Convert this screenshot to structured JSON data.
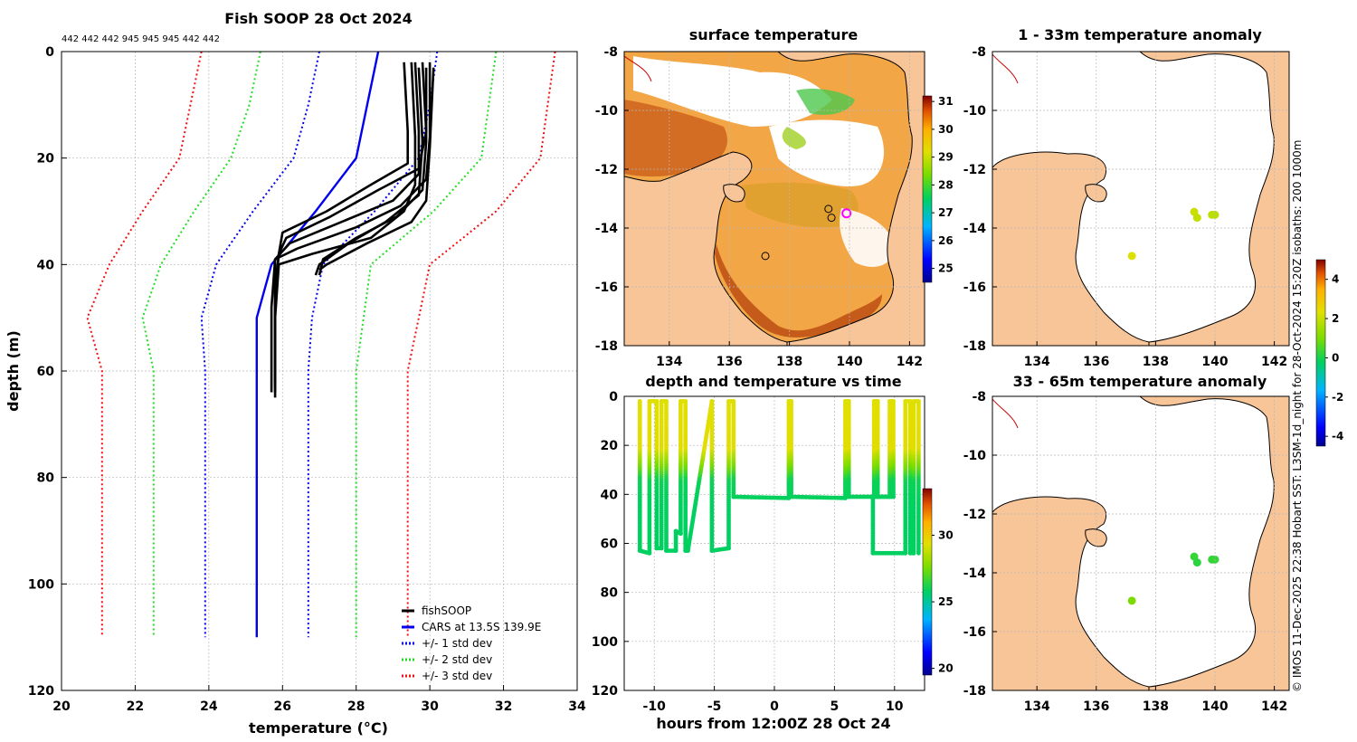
{
  "chart_data": [
    {
      "type": "line",
      "id": "profile",
      "title": "Fish SOOP 28 Oct 2024",
      "subtitle": "442 442 442 945 945 945 442 442",
      "xlabel": "temperature (°C)",
      "ylabel": "depth (m)",
      "xlim": [
        20,
        34
      ],
      "ylim": [
        120,
        0
      ],
      "xticks": [
        20,
        22,
        24,
        26,
        28,
        30,
        32,
        34
      ],
      "yticks": [
        0,
        20,
        40,
        60,
        80,
        100,
        120
      ],
      "legend_position": "bottom-right",
      "legend": [
        "fishSOOP",
        "CARS at 13.5S 139.9E",
        "+/- 1 std dev",
        "+/- 2 std dev",
        "+/- 3 std dev"
      ],
      "depths": [
        0,
        10,
        20,
        30,
        40,
        50,
        60,
        110
      ],
      "series": [
        {
          "name": "CARS at 13.5S 139.9E",
          "color": "#0000ee",
          "style": "solid",
          "temps": [
            28.6,
            28.3,
            28.0,
            26.9,
            25.7,
            25.3,
            25.3,
            25.3
          ]
        },
        {
          "name": "-1 std dev",
          "color": "#0000ee",
          "style": "dotted",
          "temps": [
            27.0,
            26.7,
            26.3,
            25.2,
            24.2,
            23.8,
            23.9,
            23.9
          ]
        },
        {
          "name": "+1 std dev",
          "color": "#0000ee",
          "style": "dotted",
          "temps": [
            30.2,
            30.0,
            29.7,
            28.5,
            27.1,
            26.8,
            26.7,
            26.7
          ]
        },
        {
          "name": "-2 std dev",
          "color": "#22dd22",
          "style": "dotted",
          "temps": [
            25.4,
            25.1,
            24.6,
            23.6,
            22.7,
            22.2,
            22.5,
            22.5
          ]
        },
        {
          "name": "+2 std dev",
          "color": "#22dd22",
          "style": "dotted",
          "temps": [
            31.8,
            31.6,
            31.4,
            30.1,
            28.4,
            28.2,
            28.0,
            28.0
          ]
        },
        {
          "name": "-3 std dev",
          "color": "#ee1111",
          "style": "dotted",
          "temps": [
            23.8,
            23.5,
            23.2,
            22.2,
            21.3,
            20.7,
            21.1,
            21.1
          ]
        },
        {
          "name": "+3 std dev",
          "color": "#ee1111",
          "style": "dotted",
          "temps": [
            33.4,
            33.2,
            33.0,
            31.8,
            30.0,
            29.7,
            29.4,
            29.4
          ]
        }
      ],
      "fishSOOP_profiles": [
        {
          "depths": [
            2,
            15,
            21,
            25,
            30,
            34,
            38,
            45,
            55,
            60,
            64
          ],
          "temps": [
            29.3,
            29.4,
            29.4,
            28.4,
            27.2,
            26.0,
            25.9,
            25.8,
            25.8,
            25.8,
            25.8
          ]
        },
        {
          "depths": [
            2,
            15,
            22,
            26,
            31,
            35,
            38,
            45,
            55,
            63
          ],
          "temps": [
            29.8,
            29.9,
            29.7,
            28.6,
            27.3,
            26.1,
            25.9,
            25.8,
            25.8,
            25.8
          ]
        },
        {
          "depths": [
            2,
            15,
            23,
            28,
            32,
            36,
            39,
            48,
            58,
            64
          ],
          "temps": [
            29.6,
            29.7,
            29.7,
            29.0,
            27.6,
            26.2,
            25.8,
            25.7,
            25.7,
            25.7
          ]
        },
        {
          "depths": [
            2,
            16,
            24,
            29,
            33,
            37,
            39,
            50,
            60,
            65
          ],
          "temps": [
            30.0,
            30.0,
            29.9,
            29.2,
            28.0,
            26.4,
            25.8,
            25.8,
            25.8,
            25.8
          ]
        },
        {
          "depths": [
            2,
            16,
            25,
            30,
            35,
            38,
            40,
            50,
            62
          ],
          "temps": [
            29.5,
            29.6,
            29.6,
            29.3,
            28.4,
            26.8,
            25.9,
            25.8,
            25.8
          ]
        },
        {
          "depths": [
            3,
            17,
            26,
            31,
            35,
            39,
            42
          ],
          "temps": [
            29.9,
            29.9,
            29.8,
            29.1,
            28.0,
            27.1,
            27.0
          ]
        },
        {
          "depths": [
            3,
            17,
            27,
            32,
            36,
            40,
            42
          ],
          "temps": [
            29.7,
            29.8,
            29.7,
            28.8,
            27.8,
            27.0,
            26.9
          ]
        },
        {
          "depths": [
            3,
            18,
            28,
            32,
            36,
            40,
            41
          ],
          "temps": [
            30.1,
            30.0,
            29.9,
            29.5,
            28.3,
            27.2,
            27.0
          ]
        }
      ]
    },
    {
      "type": "heatmap",
      "id": "sst",
      "title": "surface temperature",
      "xlim": [
        132.5,
        142.5
      ],
      "ylim": [
        -18,
        -8
      ],
      "xticks": [
        134,
        136,
        138,
        140,
        142
      ],
      "yticks": [
        -8,
        -10,
        -12,
        -14,
        -16,
        -18
      ],
      "colorbar_ticks": [
        25,
        26,
        27,
        28,
        29,
        30,
        31
      ],
      "colorbar_range": [
        24.5,
        31.2
      ],
      "circle_markers": [
        [
          139.3,
          -13.35
        ],
        [
          139.4,
          -13.65
        ],
        [
          137.2,
          -14.95
        ]
      ],
      "highlight_marker": [
        139.9,
        -13.5
      ]
    },
    {
      "type": "scatter",
      "id": "depthtime",
      "title": "depth and temperature vs time",
      "xlabel": "hours from 12:00Z 28 Oct 24",
      "xlim": [
        -12.5,
        12.5
      ],
      "ylim": [
        120,
        0
      ],
      "xticks": [
        -10,
        -5,
        0,
        5,
        10
      ],
      "yticks": [
        0,
        20,
        40,
        60,
        80,
        100,
        120
      ],
      "colorbar_ticks": [
        20,
        25,
        30
      ],
      "colorbar_range": [
        19.5,
        33.5
      ],
      "track": [
        [
          -11.2,
          2
        ],
        [
          -11.2,
          63
        ],
        [
          -10.4,
          64
        ],
        [
          -10.4,
          2
        ],
        [
          -9.8,
          2
        ],
        [
          -9.8,
          62
        ],
        [
          -9.4,
          62
        ],
        [
          -9.4,
          2
        ],
        [
          -9.0,
          2
        ],
        [
          -9.0,
          63
        ],
        [
          -8.2,
          63
        ],
        [
          -8.2,
          55
        ],
        [
          -7.8,
          56
        ],
        [
          -7.8,
          2
        ],
        [
          -7.4,
          2
        ],
        [
          -7.4,
          63
        ],
        [
          -7.2,
          63
        ],
        [
          -5.2,
          2
        ],
        [
          -5.2,
          63
        ],
        [
          -3.8,
          62
        ],
        [
          -3.8,
          2
        ],
        [
          -3.4,
          2
        ],
        [
          -3.4,
          41
        ],
        [
          1.2,
          41.5
        ],
        [
          1.2,
          2
        ],
        [
          1.4,
          2
        ],
        [
          1.4,
          41
        ],
        [
          5.9,
          41.5
        ],
        [
          5.9,
          2
        ],
        [
          6.2,
          2
        ],
        [
          6.2,
          41
        ],
        [
          8.3,
          41
        ],
        [
          8.3,
          2
        ],
        [
          8.6,
          2
        ],
        [
          8.6,
          41
        ],
        [
          9.6,
          41
        ],
        [
          9.6,
          2
        ],
        [
          9.9,
          2
        ],
        [
          9.9,
          41
        ],
        [
          8.2,
          41
        ],
        [
          8.2,
          64
        ],
        [
          10.9,
          64
        ],
        [
          10.9,
          2
        ],
        [
          11.3,
          2
        ],
        [
          11.3,
          64
        ],
        [
          11.6,
          64
        ],
        [
          11.6,
          2
        ],
        [
          12.0,
          2
        ],
        [
          12.0,
          64
        ]
      ]
    },
    {
      "type": "scatter",
      "id": "anom1",
      "title": "1 - 33m temperature anomaly",
      "xlim": [
        132.5,
        142.5
      ],
      "ylim": [
        -18,
        -8
      ],
      "xticks": [
        134,
        136,
        138,
        140,
        142
      ],
      "yticks": [
        -8,
        -10,
        -12,
        -14,
        -16,
        -18
      ],
      "points": [
        [
          139.3,
          -13.45,
          1.9
        ],
        [
          139.4,
          -13.65,
          1.8
        ],
        [
          139.9,
          -13.55,
          1.7
        ],
        [
          140.0,
          -13.55,
          1.7
        ],
        [
          137.2,
          -14.95,
          2.1
        ]
      ]
    },
    {
      "type": "scatter",
      "id": "anom2",
      "title": "33 - 65m temperature anomaly",
      "xlim": [
        132.5,
        142.5
      ],
      "ylim": [
        -18,
        -8
      ],
      "xticks": [
        134,
        136,
        138,
        140,
        142
      ],
      "yticks": [
        -8,
        -10,
        -12,
        -14,
        -16,
        -18
      ],
      "points": [
        [
          139.3,
          -13.45,
          0.3
        ],
        [
          139.4,
          -13.65,
          0.2
        ],
        [
          139.9,
          -13.55,
          0.3
        ],
        [
          140.0,
          -13.55,
          0.3
        ],
        [
          137.2,
          -14.95,
          1.0
        ]
      ]
    },
    {
      "type": "heatmap",
      "id": "anomcolorbar",
      "colorbar_ticks": [
        -4,
        -2,
        0,
        2,
        4
      ],
      "colorbar_range": [
        -4.5,
        5.0
      ]
    }
  ],
  "credit": "© IMOS 11-Dec-2025 22:38 Hobart SST: L3SM-1d_night for 28-Oct-2024 15:20Z isobaths: 200  1000m",
  "colors": {
    "land": "#f8c598",
    "fishsoop": "#000000",
    "cars": "#0000ee",
    "coast_red": "#cc0000"
  }
}
